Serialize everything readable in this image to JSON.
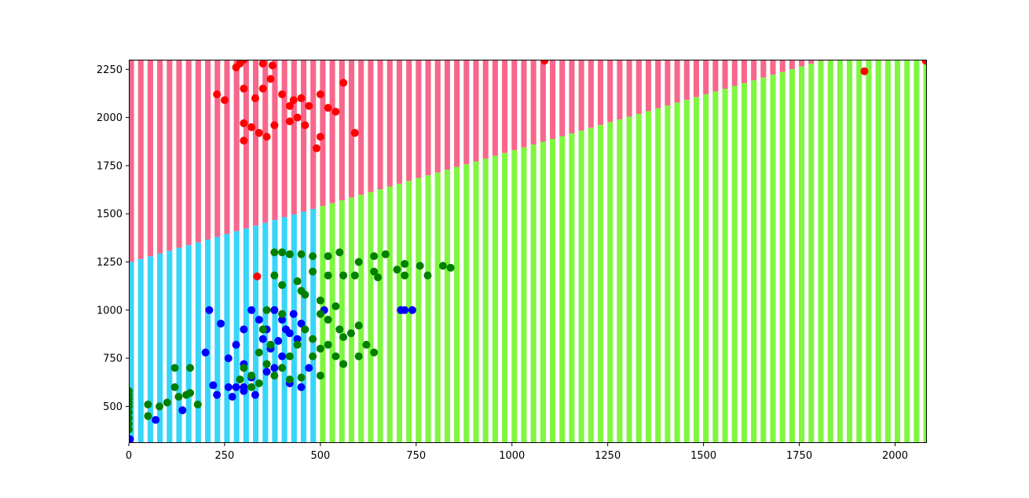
{
  "chart_data": {
    "type": "scatter",
    "title": "",
    "xlabel": "",
    "ylabel": "",
    "xlim": [
      0,
      2083
    ],
    "ylim": [
      310,
      2300
    ],
    "x_ticks": [
      "0",
      "250",
      "500",
      "750",
      "1000",
      "1250",
      "1500",
      "1750",
      "2000"
    ],
    "x_tick_values": [
      0,
      250,
      500,
      750,
      1000,
      1250,
      1500,
      1750,
      2000
    ],
    "y_ticks": [
      "500",
      "750",
      "1000",
      "1250",
      "1500",
      "1750",
      "2000",
      "2250"
    ],
    "y_tick_values": [
      500,
      750,
      1000,
      1250,
      1500,
      1750,
      2000,
      2250
    ],
    "grid": false,
    "legend": "none",
    "background_regions": {
      "description": "decision regions drawn as vertical bars",
      "bar_step": 25,
      "boundary_top_start": 1250,
      "boundary_top_slope": 0.58,
      "boundary_blue_green_x": 490,
      "colors": {
        "red_region": "#f7678b",
        "cyan_region": "#38d5fa",
        "green_region": "#7ff640"
      }
    },
    "series": [
      {
        "color": "#ff0000",
        "points": [
          [
            290,
            2280
          ],
          [
            300,
            2300
          ],
          [
            350,
            2280
          ],
          [
            375,
            2270
          ],
          [
            1085,
            2295
          ],
          [
            1920,
            2240
          ],
          [
            2080,
            2295
          ],
          [
            280,
            2260
          ],
          [
            300,
            2150
          ],
          [
            230,
            2120
          ],
          [
            250,
            2090
          ],
          [
            330,
            2100
          ],
          [
            350,
            2150
          ],
          [
            370,
            2200
          ],
          [
            400,
            2120
          ],
          [
            420,
            2060
          ],
          [
            430,
            2090
          ],
          [
            450,
            2100
          ],
          [
            470,
            2060
          ],
          [
            500,
            2120
          ],
          [
            520,
            2050
          ],
          [
            540,
            2030
          ],
          [
            560,
            2180
          ],
          [
            590,
            1920
          ],
          [
            300,
            1970
          ],
          [
            320,
            1950
          ],
          [
            340,
            1920
          ],
          [
            360,
            1900
          ],
          [
            380,
            1960
          ],
          [
            420,
            1980
          ],
          [
            440,
            2000
          ],
          [
            460,
            1960
          ],
          [
            490,
            1840
          ],
          [
            500,
            1900
          ],
          [
            300,
            1880
          ],
          [
            335,
            1175
          ]
        ]
      },
      {
        "color": "#0000ff",
        "points": [
          [
            210,
            1000
          ],
          [
            240,
            930
          ],
          [
            200,
            780
          ],
          [
            260,
            750
          ],
          [
            280,
            820
          ],
          [
            300,
            900
          ],
          [
            320,
            1000
          ],
          [
            340,
            950
          ],
          [
            360,
            900
          ],
          [
            380,
            1000
          ],
          [
            400,
            950
          ],
          [
            420,
            880
          ],
          [
            440,
            850
          ],
          [
            300,
            720
          ],
          [
            320,
            650
          ],
          [
            280,
            600
          ],
          [
            260,
            600
          ],
          [
            300,
            580
          ],
          [
            330,
            560
          ],
          [
            360,
            680
          ],
          [
            380,
            700
          ],
          [
            400,
            760
          ],
          [
            420,
            620
          ],
          [
            450,
            600
          ],
          [
            470,
            700
          ],
          [
            270,
            550
          ],
          [
            300,
            600
          ],
          [
            230,
            560
          ],
          [
            220,
            610
          ],
          [
            70,
            430
          ],
          [
            140,
            480
          ],
          [
            710,
            1000
          ],
          [
            720,
            1000
          ],
          [
            740,
            1000
          ],
          [
            510,
            1000
          ],
          [
            3,
            330
          ],
          [
            350,
            850
          ],
          [
            370,
            800
          ],
          [
            390,
            840
          ],
          [
            410,
            900
          ],
          [
            430,
            980
          ],
          [
            450,
            930
          ]
        ]
      },
      {
        "color": "#008000",
        "points": [
          [
            0,
            580
          ],
          [
            0,
            560
          ],
          [
            0,
            540
          ],
          [
            0,
            520
          ],
          [
            0,
            500
          ],
          [
            0,
            470
          ],
          [
            0,
            440
          ],
          [
            0,
            410
          ],
          [
            0,
            380
          ],
          [
            50,
            510
          ],
          [
            50,
            450
          ],
          [
            80,
            500
          ],
          [
            100,
            520
          ],
          [
            120,
            600
          ],
          [
            130,
            550
          ],
          [
            150,
            560
          ],
          [
            160,
            570
          ],
          [
            180,
            510
          ],
          [
            120,
            700
          ],
          [
            160,
            700
          ],
          [
            380,
            1300
          ],
          [
            400,
            1300
          ],
          [
            420,
            1290
          ],
          [
            450,
            1290
          ],
          [
            480,
            1280
          ],
          [
            520,
            1280
          ],
          [
            550,
            1300
          ],
          [
            600,
            1250
          ],
          [
            640,
            1280
          ],
          [
            670,
            1290
          ],
          [
            720,
            1240
          ],
          [
            760,
            1230
          ],
          [
            780,
            1180
          ],
          [
            820,
            1230
          ],
          [
            840,
            1220
          ],
          [
            560,
            1180
          ],
          [
            590,
            1180
          ],
          [
            640,
            1200
          ],
          [
            650,
            1170
          ],
          [
            700,
            1210
          ],
          [
            720,
            1180
          ],
          [
            380,
            1180
          ],
          [
            400,
            1130
          ],
          [
            450,
            1100
          ],
          [
            500,
            1050
          ],
          [
            520,
            1180
          ],
          [
            480,
            1200
          ],
          [
            440,
            1150
          ],
          [
            460,
            1080
          ],
          [
            540,
            1020
          ],
          [
            500,
            980
          ],
          [
            520,
            950
          ],
          [
            550,
            900
          ],
          [
            580,
            880
          ],
          [
            600,
            920
          ],
          [
            620,
            820
          ],
          [
            640,
            780
          ],
          [
            560,
            720
          ],
          [
            540,
            760
          ],
          [
            500,
            800
          ],
          [
            480,
            850
          ],
          [
            460,
            900
          ],
          [
            440,
            820
          ],
          [
            420,
            760
          ],
          [
            400,
            700
          ],
          [
            380,
            660
          ],
          [
            360,
            720
          ],
          [
            340,
            780
          ],
          [
            320,
            660
          ],
          [
            300,
            700
          ],
          [
            290,
            640
          ],
          [
            320,
            600
          ],
          [
            340,
            620
          ],
          [
            500,
            660
          ],
          [
            450,
            650
          ],
          [
            420,
            640
          ],
          [
            370,
            820
          ],
          [
            350,
            900
          ],
          [
            480,
            760
          ],
          [
            520,
            820
          ],
          [
            560,
            860
          ],
          [
            600,
            760
          ],
          [
            360,
            1000
          ],
          [
            400,
            980
          ]
        ]
      }
    ]
  }
}
